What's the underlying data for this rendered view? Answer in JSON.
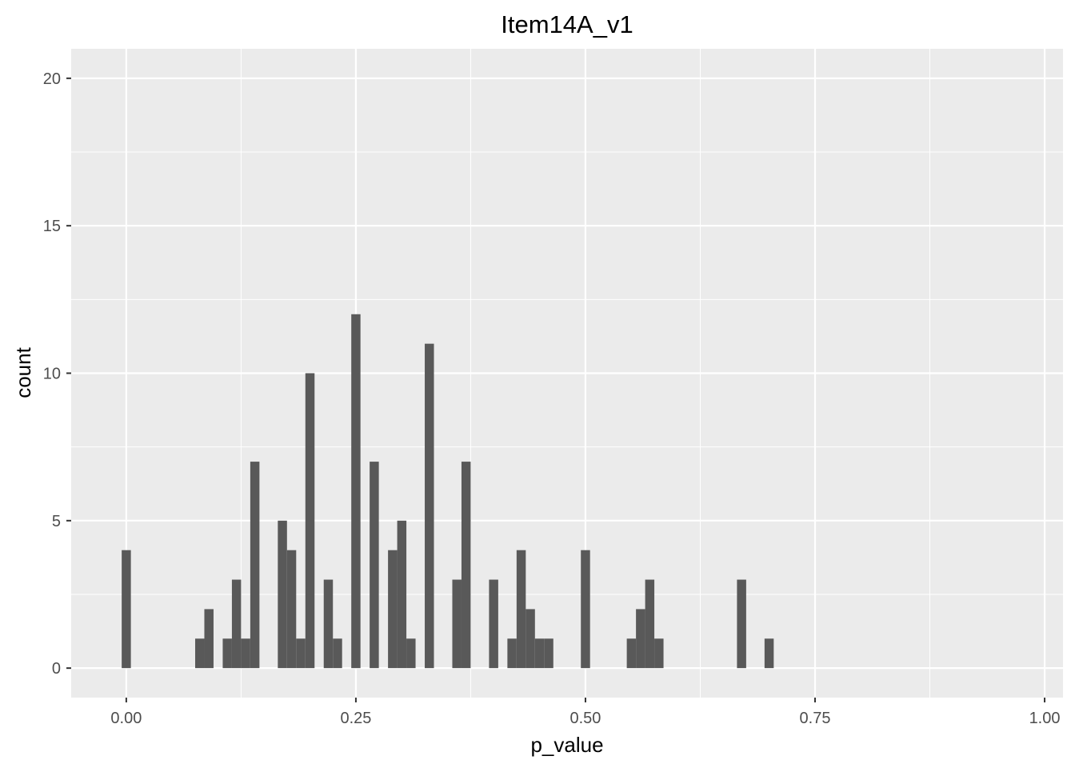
{
  "chart_data": {
    "type": "bar",
    "title": "Item14A_v1",
    "xlabel": "p_value",
    "ylabel": "count",
    "xlim": [
      -0.06,
      1.02
    ],
    "ylim": [
      -1,
      21
    ],
    "bin_width": 0.01,
    "x_ticks": [
      {
        "value": 0.0,
        "label": "0.00"
      },
      {
        "value": 0.25,
        "label": "0.25"
      },
      {
        "value": 0.5,
        "label": "0.50"
      },
      {
        "value": 0.75,
        "label": "0.75"
      },
      {
        "value": 1.0,
        "label": "1.00"
      }
    ],
    "y_ticks": [
      {
        "value": 0,
        "label": "0"
      },
      {
        "value": 5,
        "label": "5"
      },
      {
        "value": 10,
        "label": "10"
      },
      {
        "value": 15,
        "label": "15"
      },
      {
        "value": 20,
        "label": "20"
      }
    ],
    "x_minor": [
      0.125,
      0.375,
      0.625,
      0.875
    ],
    "y_minor": [
      2.5,
      7.5,
      12.5,
      17.5
    ],
    "bins": [
      {
        "x": 0.0,
        "count": 4
      },
      {
        "x": 0.08,
        "count": 1
      },
      {
        "x": 0.09,
        "count": 2
      },
      {
        "x": 0.11,
        "count": 1
      },
      {
        "x": 0.12,
        "count": 3
      },
      {
        "x": 0.13,
        "count": 1
      },
      {
        "x": 0.14,
        "count": 7
      },
      {
        "x": 0.17,
        "count": 5
      },
      {
        "x": 0.18,
        "count": 4
      },
      {
        "x": 0.19,
        "count": 1
      },
      {
        "x": 0.2,
        "count": 10
      },
      {
        "x": 0.22,
        "count": 3
      },
      {
        "x": 0.23,
        "count": 1
      },
      {
        "x": 0.25,
        "count": 12
      },
      {
        "x": 0.27,
        "count": 7
      },
      {
        "x": 0.29,
        "count": 4
      },
      {
        "x": 0.3,
        "count": 5
      },
      {
        "x": 0.31,
        "count": 1
      },
      {
        "x": 0.33,
        "count": 11
      },
      {
        "x": 0.36,
        "count": 3
      },
      {
        "x": 0.37,
        "count": 7
      },
      {
        "x": 0.4,
        "count": 3
      },
      {
        "x": 0.42,
        "count": 1
      },
      {
        "x": 0.43,
        "count": 4
      },
      {
        "x": 0.44,
        "count": 2
      },
      {
        "x": 0.45,
        "count": 1
      },
      {
        "x": 0.46,
        "count": 1
      },
      {
        "x": 0.5,
        "count": 4
      },
      {
        "x": 0.55,
        "count": 1
      },
      {
        "x": 0.56,
        "count": 2
      },
      {
        "x": 0.57,
        "count": 3
      },
      {
        "x": 0.58,
        "count": 1
      },
      {
        "x": 0.67,
        "count": 3
      },
      {
        "x": 0.7,
        "count": 1
      }
    ],
    "colors": {
      "panel_background": "#ebebeb",
      "grid": "#ffffff",
      "bar_fill": "#595959",
      "tick_mark": "#333333"
    }
  }
}
